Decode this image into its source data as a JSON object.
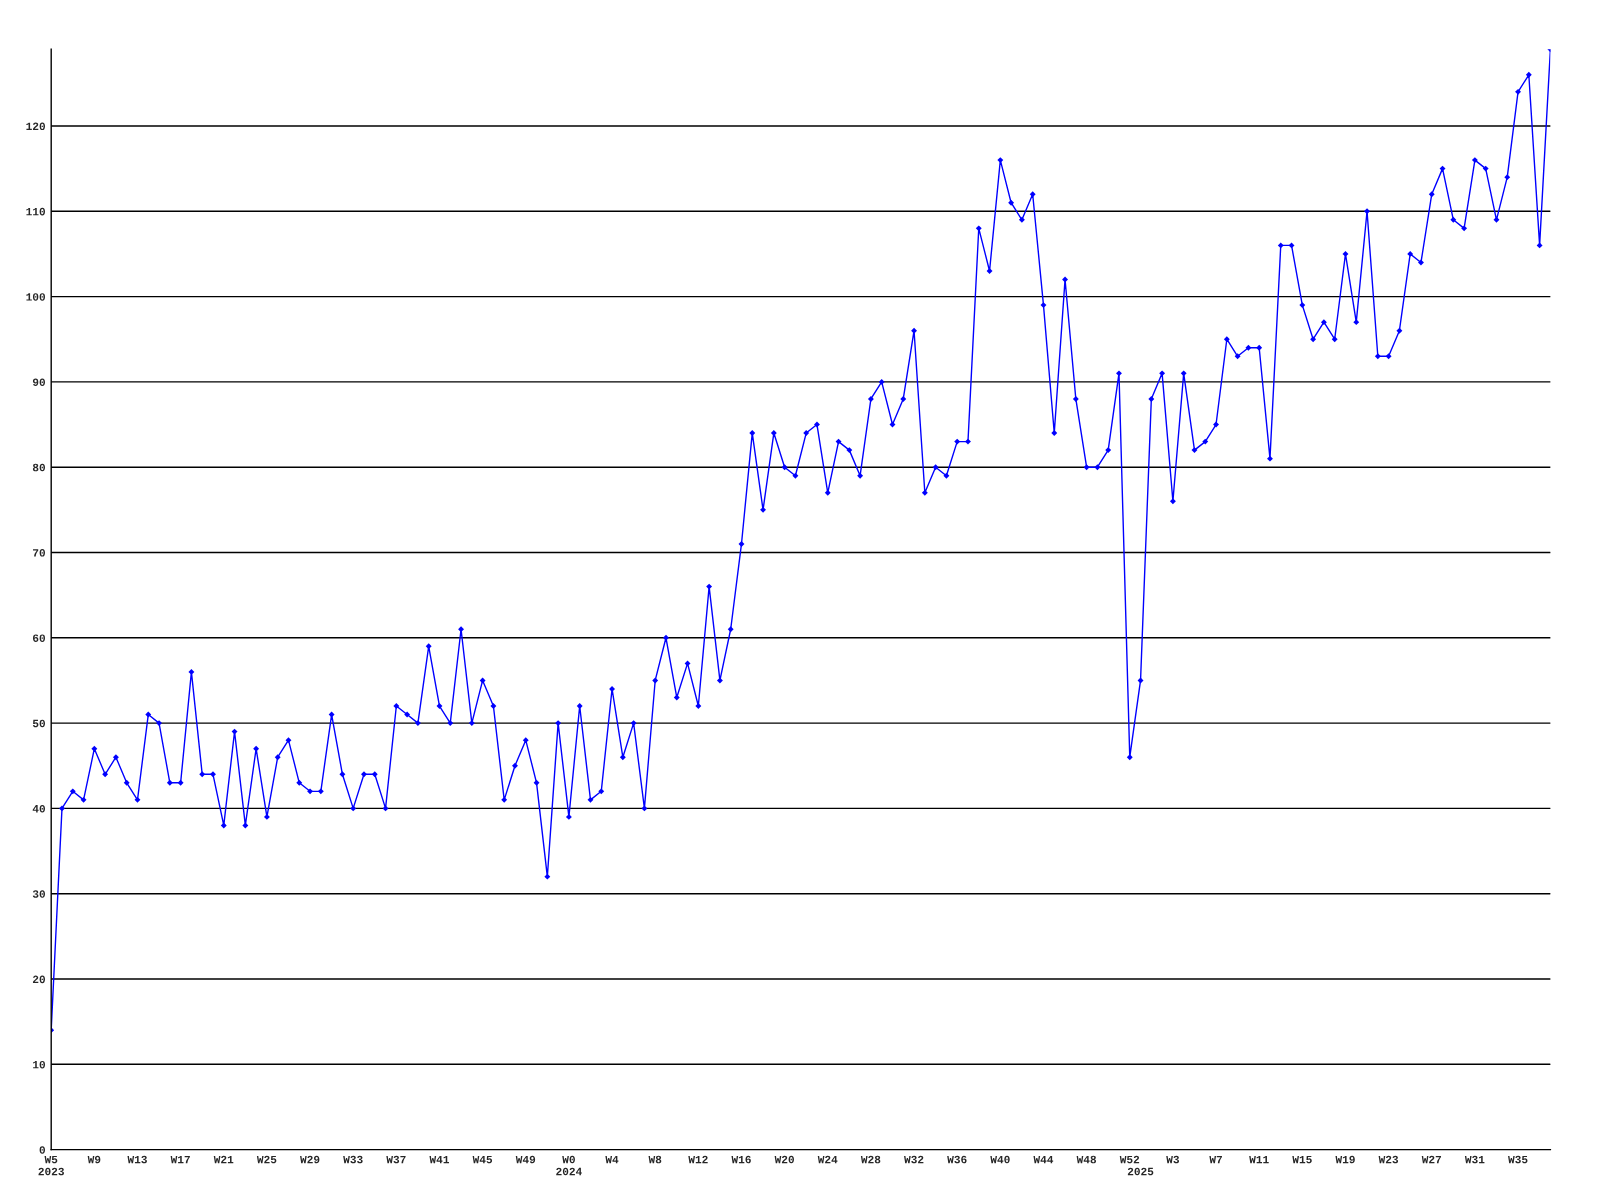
{
  "chart_data": {
    "type": "line",
    "categories": [
      "W5\n2023",
      null,
      null,
      null,
      "W9",
      null,
      null,
      null,
      "W13",
      null,
      null,
      null,
      "W17",
      null,
      null,
      null,
      "W21",
      null,
      null,
      null,
      "W25",
      null,
      null,
      null,
      "W29",
      null,
      null,
      null,
      "W33",
      null,
      null,
      null,
      "W37",
      null,
      null,
      null,
      "W41",
      null,
      null,
      null,
      "W45",
      null,
      null,
      null,
      "W49",
      null,
      null,
      null,
      "W0\n2024",
      null,
      null,
      null,
      "W4",
      null,
      null,
      null,
      "W8",
      null,
      null,
      null,
      "W12",
      null,
      null,
      null,
      "W16",
      null,
      null,
      null,
      "W20",
      null,
      null,
      null,
      "W24",
      null,
      null,
      null,
      "W28",
      null,
      null,
      null,
      "W32",
      null,
      null,
      null,
      "W36",
      null,
      null,
      null,
      "W40",
      null,
      null,
      null,
      "W44",
      null,
      null,
      null,
      "W48",
      null,
      null,
      null,
      "W52",
      "\n2025",
      null,
      null,
      "W3",
      null,
      null,
      null,
      "W7",
      null,
      null,
      null,
      "W11",
      null,
      null,
      null,
      "W15",
      null,
      null,
      null,
      "W19",
      null,
      null,
      null,
      "W23",
      null,
      null,
      null,
      "W27",
      null,
      null,
      null,
      "W31",
      null,
      null,
      null,
      "W35",
      null,
      null,
      null
    ],
    "series": [
      {
        "color": "#0000ff",
        "values": [
          14,
          40,
          42,
          41,
          47,
          44,
          46,
          43,
          41,
          51,
          50,
          43,
          43,
          56,
          44,
          44,
          38,
          49,
          38,
          47,
          39,
          46,
          48,
          43,
          42,
          42,
          51,
          44,
          40,
          44,
          44,
          40,
          52,
          51,
          50,
          59,
          52,
          50,
          61,
          50,
          55,
          52,
          41,
          45,
          48,
          43,
          32,
          50,
          39,
          52,
          41,
          42,
          54,
          46,
          50,
          40,
          55,
          60,
          53,
          57,
          52,
          66,
          55,
          61,
          71,
          84,
          75,
          84,
          80,
          79,
          84,
          85,
          77,
          83,
          82,
          79,
          88,
          90,
          85,
          88,
          96,
          77,
          80,
          79,
          83,
          83,
          108,
          103,
          116,
          111,
          109,
          112,
          99,
          84,
          102,
          88,
          80,
          80,
          82,
          91,
          46,
          55,
          88,
          91,
          76,
          91,
          82,
          83,
          85,
          95,
          93,
          94,
          94,
          81,
          106,
          106,
          99,
          95,
          97,
          95,
          105,
          97,
          110,
          93,
          93,
          96,
          105,
          104,
          112,
          115,
          109,
          108,
          116,
          115,
          109,
          114,
          124,
          126,
          106,
          129
        ]
      }
    ],
    "ylim": [
      0,
      129
    ],
    "yticks": [
      0,
      10,
      20,
      30,
      40,
      50,
      60,
      70,
      80,
      90,
      100,
      110,
      120
    ],
    "grid": "y",
    "marker": "diamond",
    "line_style": "solid"
  }
}
